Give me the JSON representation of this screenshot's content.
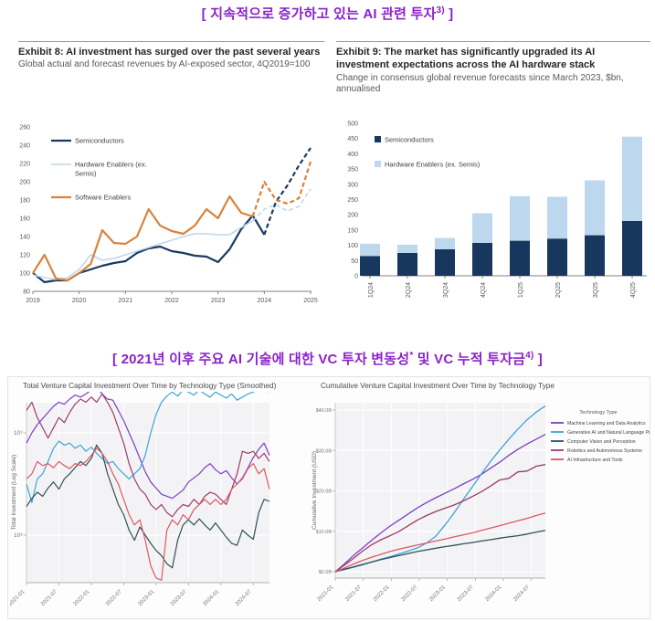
{
  "titles": {
    "top_prefix": "[ 지속적으로 증가하고 있는 AI 관련 투자",
    "top_sup": "3)",
    "top_suffix": " ]",
    "mid_prefix": "[ 2021년 이후 주요 AI 기술에 대한 VC 투자 변동성",
    "mid_sup1": "*",
    "mid_mid": " 및 VC 누적 투자금",
    "mid_sup2": "4)",
    "mid_suffix": " ]"
  },
  "chart_data": [
    {
      "id": "exhibit8",
      "type": "line",
      "title": "Exhibit 8: AI investment has surged over the past several years",
      "subtitle": "Global actual and forecast revenues by AI-exposed sector, 4Q2019=100",
      "x_ticks": [
        "2019",
        "2020",
        "2021",
        "2022",
        "2023",
        "2024",
        "2025"
      ],
      "y_ticks": [
        80,
        100,
        120,
        140,
        160,
        180,
        200,
        220,
        240,
        260
      ],
      "ylim": [
        80,
        260
      ],
      "points_per_year": 4,
      "note": "quarterly index values 2019Q1-2025Q1, dashed segment = forecast",
      "series": [
        {
          "name": "Semiconductors",
          "legend_lines": [
            "Semiconductors"
          ],
          "color": "#1b3a5f",
          "width": 2.2,
          "dash_from": 20,
          "values": [
            100,
            90,
            92,
            92,
            100,
            104,
            108,
            111,
            113,
            122,
            127,
            129,
            124,
            122,
            119,
            118,
            112,
            126,
            148,
            163,
            142,
            178,
            196,
            218,
            237
          ]
        },
        {
          "name": "Hardware Enablers (ex. Semis)",
          "legend_lines": [
            "Hardware Enablers (ex.",
            "Semis)"
          ],
          "color": "#bdd7ee",
          "width": 1.6,
          "dash_from": 19,
          "values": [
            98,
            95,
            93,
            95,
            104,
            120,
            114,
            116,
            120,
            124,
            128,
            132,
            136,
            140,
            143,
            143,
            142,
            142,
            150,
            157,
            170,
            175,
            168,
            173,
            192
          ]
        },
        {
          "name": "Software Enablers",
          "legend_lines": [
            "Software Enablers"
          ],
          "color": "#d9823b",
          "width": 2.2,
          "dash_from": 19,
          "values": [
            100,
            120,
            94,
            92,
            100,
            110,
            147,
            133,
            132,
            140,
            170,
            152,
            146,
            143,
            152,
            170,
            160,
            184,
            166,
            162,
            200,
            180,
            176,
            182,
            222
          ]
        }
      ]
    },
    {
      "id": "exhibit9",
      "type": "stacked-bar",
      "title": "Exhibit 9: The market has significantly upgraded its AI investment expectations across the AI hardware stack",
      "subtitle": "Change in consensus global revenue forecasts since March 2023, $bn, annualised",
      "categories": [
        "1Q24",
        "2Q24",
        "3Q24",
        "4Q24",
        "1Q25",
        "2Q25",
        "3Q25",
        "4Q25"
      ],
      "y_ticks": [
        0,
        50,
        100,
        150,
        200,
        250,
        300,
        350,
        400,
        450,
        500
      ],
      "ylim": [
        0,
        500
      ],
      "series": [
        {
          "name": "Semiconductors",
          "color": "#17375e",
          "values": [
            65,
            75,
            87,
            108,
            115,
            122,
            133,
            180
          ]
        },
        {
          "name": "Hardware Enablers (ex. Semis)",
          "color": "#bdd7ee",
          "values": [
            40,
            27,
            37,
            97,
            146,
            137,
            180,
            276
          ]
        }
      ]
    },
    {
      "id": "vc_total",
      "type": "line",
      "title": "Total Venture Capital Investment Over Time by Technology Type (Smoothed)",
      "ylabel": "Total Investment (Log Scale)",
      "x_ticks": [
        "2021-01",
        "2021-07",
        "2022-01",
        "2022-07",
        "2023-01",
        "2023-07",
        "2024-01",
        "2024-07"
      ],
      "x_tick_months": [
        0,
        6,
        12,
        18,
        24,
        30,
        36,
        42
      ],
      "months_total": 45,
      "y_ticks": [
        {
          "label": "10⁹",
          "log": 9
        },
        {
          "label": "10⁸",
          "log": 8
        }
      ],
      "ylim_log": [
        7.53,
        9.3
      ],
      "note": "values are log10 of monthly VC investment (USD), 2021-01 to 2024-10",
      "series": [
        {
          "name": "Machine Learning and Data Analytics",
          "color": "#7b3fc1",
          "values": [
            8.9,
            9.0,
            9.08,
            9.14,
            9.2,
            9.26,
            9.3,
            9.28,
            9.33,
            9.37,
            9.35,
            9.38,
            9.42,
            9.45,
            9.38,
            9.33,
            9.32,
            9.22,
            9.12,
            9.0,
            8.88,
            8.75,
            8.62,
            8.52,
            8.46,
            8.4,
            8.38,
            8.36,
            8.4,
            8.44,
            8.52,
            8.56,
            8.6,
            8.66,
            8.7,
            8.64,
            8.6,
            8.63,
            8.56,
            8.5,
            8.56,
            8.66,
            8.76,
            8.84,
            8.9,
            8.78
          ]
        },
        {
          "name": "Generative AI and Natural Language Processing",
          "color": "#3fa3d4",
          "values": [
            8.5,
            8.32,
            8.55,
            8.6,
            8.72,
            8.85,
            8.92,
            8.88,
            8.9,
            8.85,
            8.88,
            8.82,
            8.86,
            8.8,
            8.75,
            8.7,
            8.72,
            8.65,
            8.6,
            8.55,
            8.6,
            8.65,
            8.78,
            9.0,
            9.18,
            9.3,
            9.36,
            9.4,
            9.36,
            9.42,
            9.4,
            9.37,
            9.42,
            9.38,
            9.35,
            9.4,
            9.37,
            9.34,
            9.38,
            9.32,
            9.35,
            9.38,
            9.4,
            9.42,
            9.44,
            9.4
          ]
        },
        {
          "name": "Computer Vision and Perception",
          "color": "#2d5257",
          "values": [
            8.28,
            8.36,
            8.42,
            8.38,
            8.46,
            8.52,
            8.45,
            8.55,
            8.6,
            8.66,
            8.72,
            8.68,
            8.75,
            8.88,
            8.8,
            8.6,
            8.45,
            8.3,
            8.2,
            8.05,
            7.95,
            8.08,
            8.0,
            7.92,
            7.85,
            7.8,
            7.72,
            7.68,
            7.95,
            8.1,
            8.15,
            8.1,
            8.16,
            8.1,
            8.05,
            8.12,
            8.05,
            7.98,
            7.92,
            7.9,
            8.05,
            8.0,
            7.96,
            8.22,
            8.35,
            8.33
          ]
        },
        {
          "name": "Robotics and Autonomous Systems",
          "color": "#9e3a66",
          "values": [
            9.22,
            9.3,
            9.15,
            9.05,
            8.95,
            9.05,
            9.15,
            9.1,
            9.2,
            9.28,
            9.33,
            9.3,
            9.35,
            9.3,
            9.38,
            9.3,
            9.2,
            9.05,
            8.9,
            8.7,
            8.55,
            8.45,
            8.4,
            8.3,
            8.25,
            8.3,
            8.22,
            8.18,
            8.25,
            8.3,
            8.28,
            8.35,
            8.3,
            8.38,
            8.42,
            8.4,
            8.35,
            8.3,
            8.45,
            8.6,
            8.82,
            8.8,
            8.82,
            8.75,
            8.8,
            8.72
          ]
        },
        {
          "name": "AI Infrastructure and Tools",
          "color": "#dd5861",
          "values": [
            8.55,
            8.6,
            8.72,
            8.68,
            8.7,
            8.66,
            8.72,
            8.68,
            8.65,
            8.7,
            8.68,
            8.72,
            8.78,
            8.85,
            8.8,
            8.72,
            8.6,
            8.5,
            8.35,
            8.2,
            8.1,
            8.15,
            7.95,
            7.7,
            7.58,
            7.56,
            8.05,
            8.15,
            8.1,
            8.2,
            8.15,
            8.25,
            8.3,
            8.35,
            8.3,
            8.35,
            8.3,
            8.35,
            8.45,
            8.5,
            8.55,
            8.65,
            8.7,
            8.6,
            8.65,
            8.45
          ]
        }
      ]
    },
    {
      "id": "vc_cumulative",
      "type": "line",
      "title": "Cumulative Venture Capital Investment Over Time by Technology Type",
      "ylabel": "Cumulative Investment (USD)",
      "legend_title": "Technology Type",
      "x_ticks": [
        "2021-01",
        "2021-07",
        "2022-01",
        "2022-07",
        "2023-01",
        "2023-07",
        "2024-01",
        "2024-07"
      ],
      "x_tick_months": [
        0,
        6,
        12,
        18,
        24,
        30,
        36,
        42
      ],
      "months_total": 45,
      "y_ticks": [
        {
          "label": "$0.0B",
          "v": 0
        },
        {
          "label": "$10.0B",
          "v": 10
        },
        {
          "label": "$20.0B",
          "v": 20
        },
        {
          "label": "$30.0B",
          "v": 30
        },
        {
          "label": "$40.0B",
          "v": 40
        }
      ],
      "ylim": [
        0,
        44
      ],
      "note": "cumulative VC investment in $bn, 24 bimonthly points 2021-01 to 2024-11",
      "series": [
        {
          "name": "Machine Learning and Data Analytics",
          "color": "#7b3fc1",
          "values": [
            0,
            1.9,
            4.0,
            5.9,
            7.8,
            9.6,
            11.3,
            12.8,
            14.3,
            15.8,
            17.1,
            18.3,
            19.4,
            20.5,
            21.7,
            22.8,
            24.1,
            25.6,
            27.1,
            28.8,
            30.3,
            31.6,
            32.8,
            34
          ]
        },
        {
          "name": "Generative AI and Natural Language Processing",
          "color": "#3fa3d4",
          "values": [
            0,
            0.5,
            1.1,
            1.7,
            2.4,
            3.1,
            3.7,
            4.4,
            5.1,
            5.9,
            7.1,
            8.8,
            11.5,
            14.5,
            17.8,
            21.0,
            24.2,
            27.3,
            30.1,
            32.8,
            35.3,
            37.6,
            39.5,
            41
          ]
        },
        {
          "name": "Computer Vision and Perception",
          "color": "#2d5257",
          "values": [
            0,
            0.6,
            1.2,
            1.8,
            2.4,
            3.0,
            3.5,
            4.0,
            4.5,
            5.0,
            5.4,
            5.8,
            6.2,
            6.5,
            6.9,
            7.2,
            7.6,
            7.9,
            8.3,
            8.6,
            8.9,
            9.3,
            9.8,
            10.2
          ]
        },
        {
          "name": "Robotics and Autonomous Systems",
          "color": "#9e3a66",
          "values": [
            0,
            1.6,
            3.3,
            5.1,
            6.7,
            7.9,
            8.9,
            10.0,
            11.4,
            12.8,
            13.9,
            14.9,
            15.7,
            16.5,
            17.5,
            18.6,
            19.8,
            21.2,
            22.7,
            23.1,
            24.7,
            24.9,
            26.1,
            26.5
          ]
        },
        {
          "name": "AI Infrastructure and Tools",
          "color": "#dd5861",
          "values": [
            0,
            0.9,
            1.9,
            2.8,
            3.6,
            4.3,
            5.0,
            5.6,
            6.1,
            6.6,
            7.1,
            7.6,
            8.1,
            8.6,
            9.1,
            9.6,
            10.2,
            10.8,
            11.4,
            12.0,
            12.6,
            13.2,
            13.9,
            14.5
          ]
        }
      ]
    }
  ]
}
